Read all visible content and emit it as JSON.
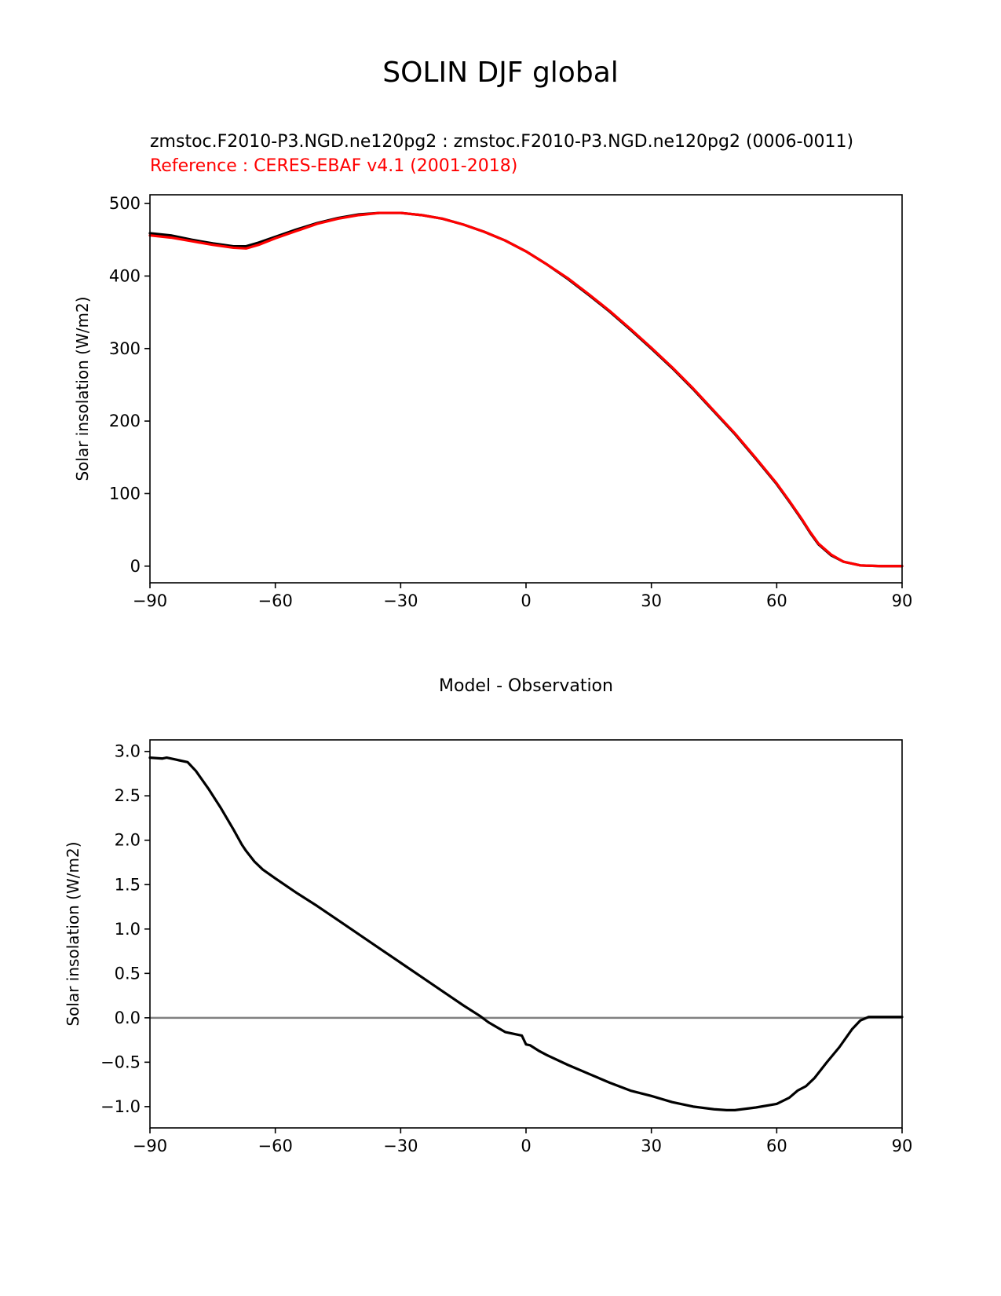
{
  "figure": {
    "suptitle": "SOLIN DJF global"
  },
  "chart_data": [
    {
      "type": "line",
      "title_lines": [
        {
          "text": "zmstoc.F2010-P3.NGD.ne120pg2 : zmstoc.F2010-P3.NGD.ne120pg2 (0006-0011)",
          "color": "#000000"
        },
        {
          "text": "Reference : CERES-EBAF v4.1 (2001-2018)",
          "color": "#ff0000"
        }
      ],
      "xlabel": "",
      "ylabel": "Solar insolation (W/m2)",
      "xlim": [
        -90,
        90
      ],
      "ylim": [
        -23,
        512
      ],
      "xticks": [
        -90,
        -60,
        -30,
        0,
        30,
        60,
        90
      ],
      "xtick_labels": [
        "−90",
        "−60",
        "−30",
        "0",
        "30",
        "60",
        "90"
      ],
      "yticks": [
        0,
        100,
        200,
        300,
        400,
        500
      ],
      "ytick_labels": [
        "0",
        "100",
        "200",
        "300",
        "400",
        "500"
      ],
      "grid": false,
      "x": [
        -90,
        -85,
        -80,
        -75,
        -70,
        -67,
        -64,
        -60,
        -55,
        -50,
        -45,
        -40,
        -35,
        -30,
        -25,
        -20,
        -15,
        -10,
        -5,
        0,
        5,
        10,
        15,
        20,
        25,
        30,
        35,
        40,
        45,
        50,
        55,
        60,
        63,
        66,
        68,
        70,
        73,
        76,
        80,
        85,
        90
      ],
      "series": [
        {
          "color": "#000000",
          "values": [
            459,
            456,
            450,
            445,
            441,
            441,
            446,
            454,
            464,
            473,
            480,
            485,
            487,
            487,
            484,
            479,
            471,
            461,
            449,
            434,
            416,
            396,
            374,
            351,
            326,
            300,
            273,
            244,
            213,
            182,
            148,
            113,
            89,
            64,
            46,
            30,
            15,
            6,
            1,
            0,
            0
          ]
        },
        {
          "color": "#ff0000",
          "values": [
            456,
            453,
            448,
            443,
            439,
            438,
            443,
            452,
            462,
            472,
            479,
            484,
            487,
            487,
            484,
            479,
            471,
            461,
            449,
            434,
            416,
            397,
            375,
            352,
            327,
            301,
            274,
            245,
            214,
            183,
            149,
            114,
            90,
            65,
            47,
            31,
            16,
            6,
            1,
            0,
            0
          ]
        }
      ]
    },
    {
      "type": "line",
      "title": "Model - Observation",
      "xlabel": "",
      "ylabel": "Solar insolation (W/m2)",
      "xlim": [
        -90,
        90
      ],
      "ylim": [
        -1.24,
        3.13
      ],
      "xticks": [
        -90,
        -60,
        -30,
        0,
        30,
        60,
        90
      ],
      "xtick_labels": [
        "−90",
        "−60",
        "−30",
        "0",
        "30",
        "60",
        "90"
      ],
      "yticks": [
        -1.0,
        -0.5,
        0.0,
        0.5,
        1.0,
        1.5,
        2.0,
        2.5,
        3.0
      ],
      "ytick_labels": [
        "−1.0",
        "−0.5",
        "0.0",
        "0.5",
        "1.0",
        "1.5",
        "2.0",
        "2.5",
        "3.0"
      ],
      "grid": false,
      "zero_line": {
        "y": 0,
        "color": "#808080"
      },
      "x": [
        -90,
        -87,
        -86,
        -84,
        -83,
        -81,
        -79,
        -76,
        -73,
        -70,
        -68,
        -67,
        -65,
        -63,
        -60,
        -55,
        -50,
        -45,
        -40,
        -35,
        -30,
        -25,
        -20,
        -15,
        -11,
        -9,
        -5,
        -1,
        0,
        1,
        3,
        5,
        10,
        15,
        20,
        25,
        30,
        35,
        40,
        45,
        48,
        50,
        55,
        60,
        63,
        65,
        67,
        69,
        72,
        75,
        78,
        80,
        82,
        85,
        90
      ],
      "series": [
        {
          "color": "#000000",
          "values": [
            2.93,
            2.92,
            2.93,
            2.91,
            2.9,
            2.88,
            2.78,
            2.58,
            2.36,
            2.12,
            1.95,
            1.88,
            1.76,
            1.67,
            1.57,
            1.41,
            1.26,
            1.1,
            0.94,
            0.78,
            0.62,
            0.46,
            0.3,
            0.14,
            0.02,
            -0.05,
            -0.16,
            -0.2,
            -0.3,
            -0.31,
            -0.37,
            -0.42,
            -0.53,
            -0.63,
            -0.73,
            -0.82,
            -0.88,
            -0.95,
            -1.0,
            -1.03,
            -1.04,
            -1.04,
            -1.01,
            -0.97,
            -0.9,
            -0.82,
            -0.77,
            -0.68,
            -0.5,
            -0.33,
            -0.13,
            -0.03,
            0.01,
            0.01,
            0.01
          ]
        }
      ]
    }
  ]
}
